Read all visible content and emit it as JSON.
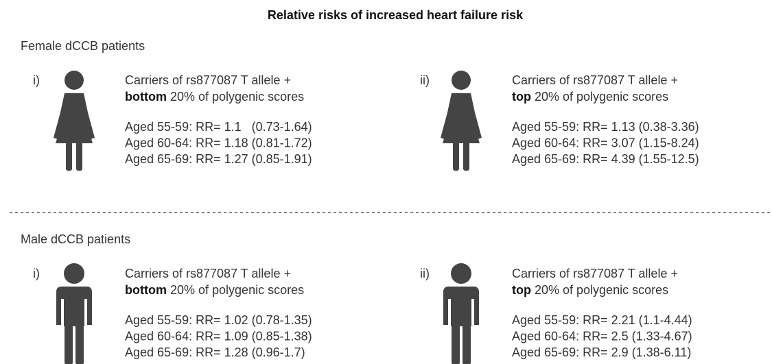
{
  "title": "Relative risks of increased heart failure risk",
  "sections": [
    {
      "label": "Female dCCB patients",
      "figure": "female",
      "panels": [
        {
          "index": "i)",
          "line1": "Carriers of rs877087 T allele +",
          "emphasis": "bottom",
          "line2": "20% of polygenic scores",
          "rows": [
            "Aged 55-59: RR= 1.1   (0.73-1.64)",
            "Aged 60-64: RR= 1.18 (0.81-1.72)",
            "Aged 65-69: RR= 1.27 (0.85-1.91)"
          ]
        },
        {
          "index": "ii)",
          "line1": "Carriers of rs877087 T allele +",
          "emphasis": "top",
          "line2": "20% of polygenic scores",
          "rows": [
            "Aged 55-59: RR= 1.13 (0.38-3.36)",
            "Aged 60-64: RR= 3.07 (1.15-8.24)",
            "Aged 65-69: RR= 4.39 (1.55-12.5)"
          ]
        }
      ]
    },
    {
      "label": "Male dCCB patients",
      "figure": "male",
      "panels": [
        {
          "index": "i)",
          "line1": "Carriers of rs877087 T allele +",
          "emphasis": "bottom",
          "line2": "20% of polygenic scores",
          "rows": [
            "Aged 55-59: RR= 1.02 (0.78-1.35)",
            "Aged 60-64: RR= 1.09 (0.85-1.38)",
            "Aged 65-69: RR= 1.28 (0.96-1.7)"
          ]
        },
        {
          "index": "ii)",
          "line1": "Carriers of rs877087 T allele +",
          "emphasis": "top",
          "line2": "20% of polygenic scores",
          "rows": [
            "Aged 55-59: RR= 2.21 (1.1-4.44)",
            "Aged 60-64: RR= 2.5 (1.33-4.67)",
            "Aged 65-69: RR= 2.9 (1.38-6.11)"
          ]
        }
      ]
    }
  ]
}
